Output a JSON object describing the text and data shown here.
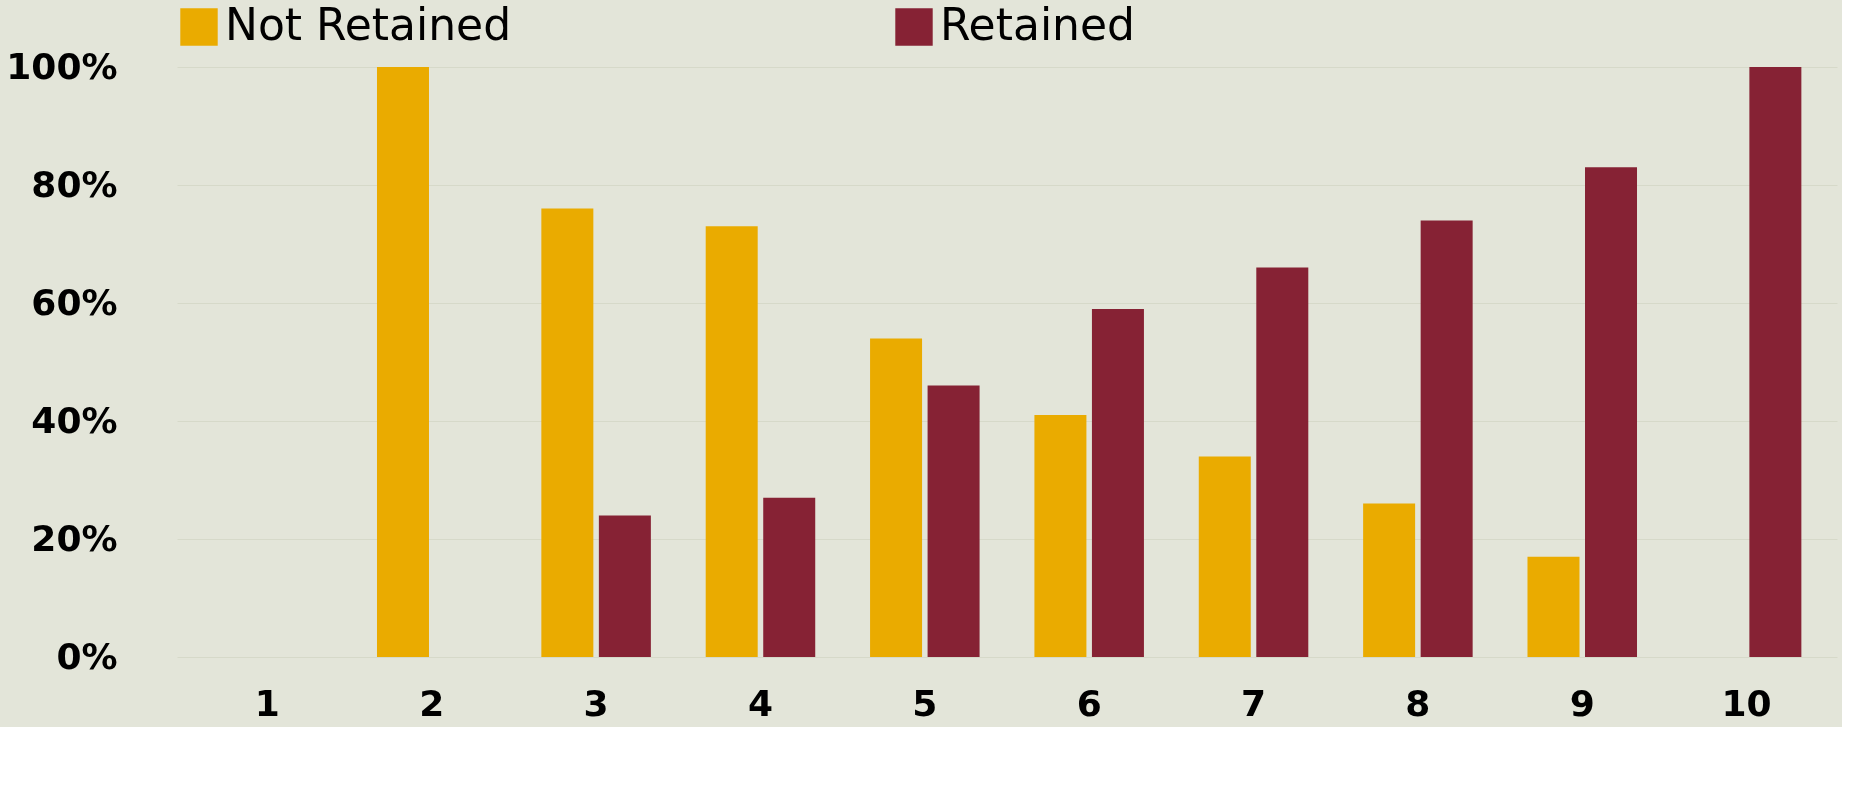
{
  "chart_data": {
    "type": "bar",
    "categories": [
      "1",
      "2",
      "3",
      "4",
      "5",
      "6",
      "7",
      "8",
      "9",
      "10"
    ],
    "series": [
      {
        "name": "Not Retained",
        "color": "#eaab00",
        "values": [
          0,
          100,
          76,
          73,
          54,
          41,
          34,
          26,
          17,
          0
        ]
      },
      {
        "name": "Retained",
        "color": "#862234",
        "values": [
          0,
          0,
          24,
          27,
          46,
          59,
          66,
          74,
          83,
          100
        ]
      }
    ],
    "ylim": [
      0,
      100
    ],
    "yticks": [
      {
        "value": 0,
        "label": "0%"
      },
      {
        "value": 20,
        "label": "20%"
      },
      {
        "value": 40,
        "label": "40%"
      },
      {
        "value": 60,
        "label": "60%"
      },
      {
        "value": 80,
        "label": "80%"
      },
      {
        "value": 100,
        "label": "100%"
      }
    ],
    "grid": "y",
    "legend": "top"
  }
}
